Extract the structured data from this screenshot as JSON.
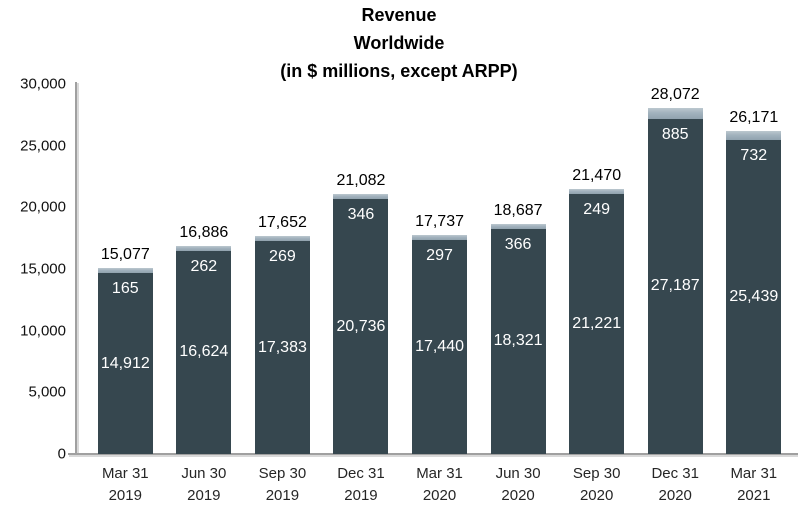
{
  "chart_data": {
    "type": "bar",
    "stacked": true,
    "title": "Revenue",
    "subtitle": "Worldwide",
    "units_note": "(in $ millions, except ARPP)",
    "categories": [
      [
        "Mar 31",
        "2019"
      ],
      [
        "Jun 30",
        "2019"
      ],
      [
        "Sep 30",
        "2019"
      ],
      [
        "Dec 31",
        "2019"
      ],
      [
        "Mar 31",
        "2020"
      ],
      [
        "Jun 30",
        "2020"
      ],
      [
        "Sep 30",
        "2020"
      ],
      [
        "Dec 31",
        "2020"
      ],
      [
        "Mar 31",
        "2021"
      ]
    ],
    "series": [
      {
        "name": "base-segment",
        "color": "#36474f",
        "values": [
          14912,
          16624,
          17383,
          20736,
          17440,
          18321,
          21221,
          27187,
          25439
        ],
        "labels": [
          "14,912",
          "16,624",
          "17,383",
          "20,736",
          "17,440",
          "18,321",
          "21,221",
          "27,187",
          "25,439"
        ]
      },
      {
        "name": "top-segment",
        "color": "#9badb9",
        "values": [
          165,
          262,
          269,
          346,
          297,
          366,
          249,
          885,
          732
        ],
        "labels": [
          "165",
          "262",
          "269",
          "346",
          "297",
          "366",
          "249",
          "885",
          "732"
        ]
      }
    ],
    "totals": [
      15077,
      16886,
      17652,
      21082,
      17737,
      18687,
      21470,
      28072,
      26171
    ],
    "totals_labels": [
      "15,077",
      "16,886",
      "17,652",
      "21,082",
      "17,737",
      "18,687",
      "21,470",
      "28,072",
      "26,171"
    ],
    "y_ticks": [
      0,
      5000,
      10000,
      15000,
      20000,
      25000,
      30000
    ],
    "y_tick_labels": [
      "0",
      "5,000",
      "10,000",
      "15,000",
      "20,000",
      "25,000",
      "30,000"
    ],
    "ylim": [
      0,
      30000
    ],
    "grid": false,
    "legend": false,
    "axis_color": "#a0a0a0",
    "value_label_color_inside": "#ffffff",
    "value_label_color_total": "#000000"
  }
}
